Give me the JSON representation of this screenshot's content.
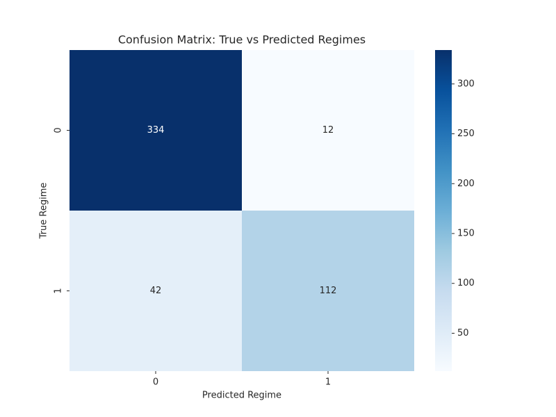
{
  "chart_data": {
    "type": "heatmap",
    "title": "Confusion Matrix: True vs Predicted Regimes",
    "xlabel": "Predicted Regime",
    "ylabel": "True Regime",
    "x_categories": [
      "0",
      "1"
    ],
    "y_categories": [
      "0",
      "1"
    ],
    "values": [
      [
        334,
        12
      ],
      [
        42,
        112
      ]
    ],
    "colormap": "Blues",
    "zlim": [
      12,
      334
    ],
    "zticks": [
      50,
      100,
      150,
      200,
      250,
      300
    ]
  }
}
